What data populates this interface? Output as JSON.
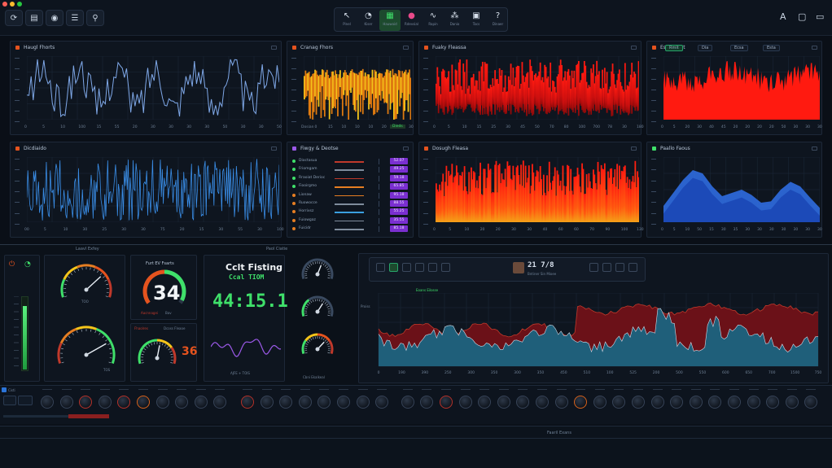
{
  "window": {
    "traffic_lights": [
      "#ff5f57",
      "#febc2e",
      "#28c840"
    ]
  },
  "toolbar_left": [
    {
      "name": "refresh-icon",
      "glyph": "⟳"
    },
    {
      "name": "document-icon",
      "glyph": "▤"
    },
    {
      "name": "eye-icon",
      "glyph": "◉"
    },
    {
      "name": "list-icon",
      "glyph": "☰"
    },
    {
      "name": "filter-icon",
      "glyph": "⚲"
    }
  ],
  "toolbar_center": [
    {
      "name": "pointer-icon",
      "glyph": "↖",
      "label": "Pinel"
    },
    {
      "name": "gauge-icon",
      "glyph": "◔",
      "label": "Kiser"
    },
    {
      "name": "grid-icon",
      "glyph": "▦",
      "label": "Hauwoid"
    },
    {
      "name": "record-icon",
      "glyph": "●",
      "label": "Rdevsial"
    },
    {
      "name": "wave-icon",
      "glyph": "∿",
      "label": "Rapin"
    },
    {
      "name": "nodes-icon",
      "glyph": "⁂",
      "label": "Danio"
    },
    {
      "name": "tiles-icon",
      "glyph": "▣",
      "label": "Tocs"
    },
    {
      "name": "help-icon",
      "glyph": "?",
      "label": "Dinaer"
    }
  ],
  "toolbar_right": [
    {
      "name": "text-icon",
      "glyph": "A"
    },
    {
      "name": "window-icon",
      "glyph": "▢"
    },
    {
      "name": "monitor-icon",
      "glyph": "▭"
    }
  ],
  "panels": {
    "p1": {
      "title": "Haugl Fhorts",
      "accent": "#e5531e",
      "x_ticks": [
        "0",
        "5",
        "10",
        "100",
        "15",
        "55",
        "20",
        "30",
        "30",
        "30",
        "30",
        "50",
        "30",
        "30",
        "50"
      ]
    },
    "p2": {
      "title": "Cranag Fhors",
      "accent": "#e5531e",
      "x_ticks": [
        "Dosian",
        "0",
        "15",
        "10",
        "10",
        "10",
        "20",
        "20",
        "30"
      ],
      "badge": "Dieds"
    },
    "p3": {
      "title": "Fuaky Fleassa",
      "accent": "#e5531e",
      "x_ticks": [
        "0",
        "5",
        "10",
        "15",
        "25",
        "30",
        "45",
        "50",
        "70",
        "80",
        "100",
        "700",
        "78",
        "30",
        "180"
      ]
    },
    "p4": {
      "title": "Esca Fleot",
      "accent": "#e5531e",
      "chips": [
        "Rmit",
        "Dia",
        "Ecsa",
        "Esta"
      ],
      "x_ticks": [
        "0",
        "5",
        "20",
        "30",
        "40",
        "45",
        "20",
        "20",
        "20",
        "20",
        "50",
        "30",
        "30",
        "30"
      ]
    },
    "p5": {
      "title": "Dicdiaido",
      "accent": "#e5531e",
      "x_ticks": [
        "00",
        "5",
        "10",
        "30",
        "25",
        "30",
        "30",
        "75",
        "20",
        "15",
        "30",
        "55",
        "30",
        "100"
      ]
    },
    "p6": {
      "title": "Fiwgy & Deotse",
      "accent": "#9b59e8",
      "rows": [
        {
          "label": "Dioctasua",
          "color": "#3fe06a",
          "bar": "#c0392b",
          "badge": "52.07"
        },
        {
          "label": "Friomgam",
          "color": "#3fe06a",
          "bar": "#7f8c9c",
          "badge": "49.25"
        },
        {
          "label": "Rraoiat Derioc",
          "color": "#3fe06a",
          "bar": "#c0392b",
          "badge": "59.18"
        },
        {
          "label": "Fiooirgmo",
          "color": "#3fe06a",
          "bar": "#e67e22",
          "badge": "65.85"
        },
        {
          "label": "Lionaw",
          "color": "#e67e22",
          "bar": "#e67e22",
          "badge": "95.18"
        },
        {
          "label": "Ruowocce",
          "color": "#e67e22",
          "bar": "#7f8c9c",
          "badge": "88.55"
        },
        {
          "label": "Horrixsz",
          "color": "#e67e22",
          "bar": "#3aa0e0",
          "badge": "55.25"
        },
        {
          "label": "Fuiowgaz",
          "color": "#e67e22",
          "bar": "#7f8c9c",
          "badge": "35.55"
        },
        {
          "label": "Fuicidr",
          "color": "#e67e22",
          "bar": "#7f8c9c",
          "badge": "85.18"
        }
      ]
    },
    "p7": {
      "title": "Dosugh Fleasa",
      "accent": "#e5531e",
      "x_ticks": [
        "0",
        "5",
        "10",
        "20",
        "20",
        "30",
        "30",
        "40",
        "60",
        "60",
        "70",
        "90",
        "100",
        "130"
      ]
    },
    "p8": {
      "title": "Paallo Faous",
      "accent": "#3fe06a",
      "x_ticks": [
        "0",
        "5",
        "10",
        "50",
        "15",
        "30",
        "35",
        "30",
        "30",
        "30",
        "30",
        "30",
        "30",
        "30"
      ]
    }
  },
  "lower": {
    "section_left_title": "Laavl Exfey",
    "section_mid_title": "Paol Ciatie",
    "gauges": {
      "big_number": "34",
      "big_number_label": "Furt EV Fsarts",
      "big_number_caption": "Aacnnagei",
      "big_number_caption2": "Bav",
      "gauge1_label": "TOO",
      "gauge2_label": "TOS",
      "small_gauge_value": "36",
      "small_labels": [
        "Fhaolres",
        "Dcoss Fleaoe"
      ]
    },
    "clock": {
      "title": "Cclt Fisting",
      "subtitle": "Ccal TIOM",
      "time": "44:15.1",
      "caption": "AJFE + TOIS"
    },
    "right_gauges_caption": "Cbni Ekalkeal",
    "chart": {
      "legend": "Eoans Eilosse",
      "header_value": "21 7/8",
      "header_caption": "Bntiner Sin Mioee",
      "x_ticks": [
        "0",
        "190",
        "390",
        "250",
        "300",
        "350",
        "300",
        "350",
        "450",
        "510",
        "100",
        "525",
        "200",
        "500",
        "550",
        "600",
        "650",
        "700",
        "1500",
        "750"
      ],
      "y_label": "Proiss"
    },
    "mixer_left_label": "Cisti"
  },
  "footer": {
    "label": "Faaril Exans"
  }
}
